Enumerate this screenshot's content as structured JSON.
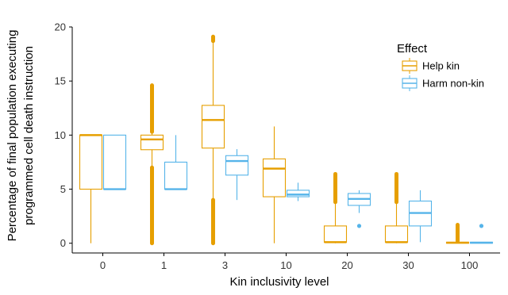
{
  "chart_data": {
    "type": "box",
    "xlabel": "Kin inclusivity level",
    "ylabel_lines": [
      "Percentage of final population executing",
      "programmed cell death instruction"
    ],
    "ylim": [
      -0.9,
      20
    ],
    "yticks": [
      0,
      5,
      10,
      15,
      20
    ],
    "categories": [
      "0",
      "1",
      "3",
      "10",
      "20",
      "30",
      "100"
    ],
    "grid": false,
    "legend": {
      "title": "Effect",
      "placement": "top-right-inside"
    },
    "series": [
      {
        "name": "Help kin",
        "color": "#E69F00",
        "boxes": [
          {
            "category": "0",
            "whisker_low": 0,
            "q1": 5.0,
            "median": 10.0,
            "q3": 10.0,
            "whisker_high": 10.0,
            "outlier_range": null,
            "outliers": []
          },
          {
            "category": "1",
            "whisker_low": 7.0,
            "q1": 8.65,
            "median": 9.6,
            "q3": 10.0,
            "whisker_high": 10.3,
            "outlier_range": [
              [
                0,
                7.0
              ],
              [
                10.3,
                14.6
              ]
            ],
            "outliers": []
          },
          {
            "category": "3",
            "whisker_low": 4.0,
            "q1": 8.8,
            "median": 11.4,
            "q3": 12.75,
            "whisker_high": 18.7,
            "outlier_range": [
              [
                0,
                4.0
              ],
              [
                18.7,
                19.1
              ]
            ],
            "outliers": []
          },
          {
            "category": "10",
            "whisker_low": 0,
            "q1": 4.3,
            "median": 6.9,
            "q3": 7.8,
            "whisker_high": 10.8,
            "outlier_range": null,
            "outliers": []
          },
          {
            "category": "20",
            "whisker_low": 0,
            "q1": 0.1,
            "median": 0.1,
            "q3": 1.6,
            "whisker_high": 3.8,
            "outlier_range": [
              [
                3.8,
                6.4
              ]
            ],
            "outliers": []
          },
          {
            "category": "30",
            "whisker_low": 0,
            "q1": 0.1,
            "median": 0.1,
            "q3": 1.6,
            "whisker_high": 3.8,
            "outlier_range": [
              [
                3.8,
                6.4
              ]
            ],
            "outliers": []
          },
          {
            "category": "100",
            "whisker_low": 0,
            "q1": 0.0,
            "median": 0.05,
            "q3": 0.1,
            "whisker_high": 0.2,
            "outlier_range": [
              [
                0.2,
                1.7
              ]
            ],
            "outliers": []
          }
        ]
      },
      {
        "name": "Harm non-kin",
        "color": "#56B4E9",
        "boxes": [
          {
            "category": "0",
            "whisker_low": 5.0,
            "q1": 5.0,
            "median": 5.0,
            "q3": 10.0,
            "whisker_high": 10.0,
            "outlier_range": null,
            "outliers": []
          },
          {
            "category": "1",
            "whisker_low": 5.0,
            "q1": 5.0,
            "median": 5.0,
            "q3": 7.5,
            "whisker_high": 10.0,
            "outlier_range": null,
            "outliers": []
          },
          {
            "category": "3",
            "whisker_low": 4.0,
            "q1": 6.3,
            "median": 7.6,
            "q3": 8.1,
            "whisker_high": 8.7,
            "outlier_range": null,
            "outliers": []
          },
          {
            "category": "10",
            "whisker_low": 3.9,
            "q1": 4.3,
            "median": 4.5,
            "q3": 4.9,
            "whisker_high": 5.6,
            "outlier_range": null,
            "outliers": []
          },
          {
            "category": "20",
            "whisker_low": 2.8,
            "q1": 3.5,
            "median": 4.1,
            "q3": 4.6,
            "whisker_high": 4.9,
            "outlier_range": null,
            "outliers": [
              1.6
            ]
          },
          {
            "category": "30",
            "whisker_low": 0.1,
            "q1": 1.6,
            "median": 2.8,
            "q3": 3.9,
            "whisker_high": 4.9,
            "outlier_range": null,
            "outliers": []
          },
          {
            "category": "100",
            "whisker_low": 0,
            "q1": 0.0,
            "median": 0.05,
            "q3": 0.1,
            "whisker_high": 0.1,
            "outlier_range": null,
            "outliers": [
              1.6
            ]
          }
        ]
      }
    ]
  }
}
